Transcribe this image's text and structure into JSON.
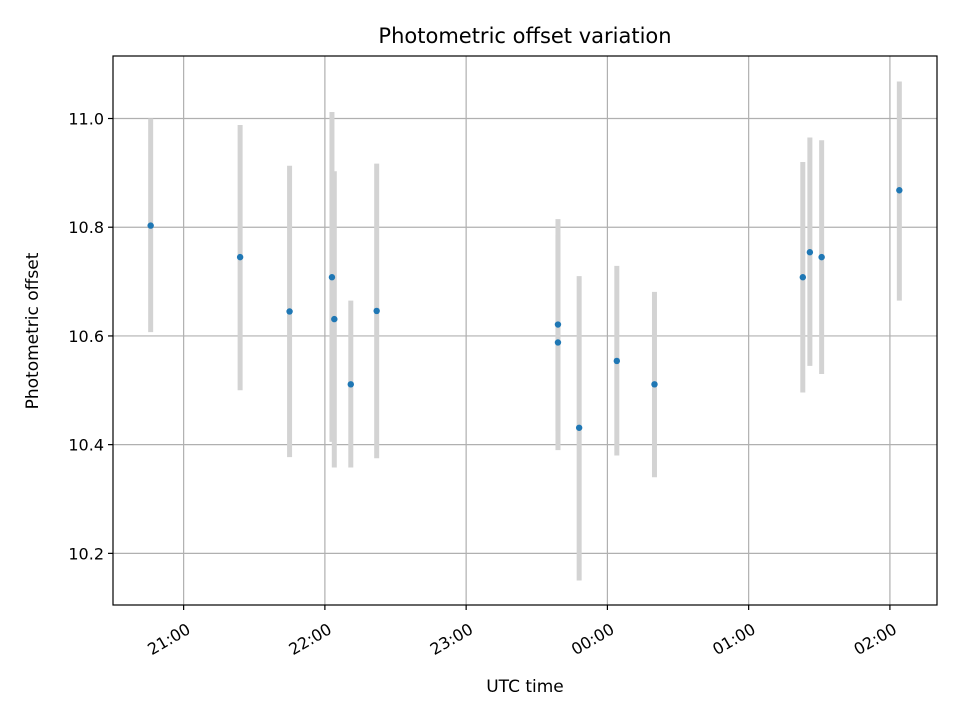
{
  "chart_data": {
    "type": "scatter",
    "title": "Photometric offset variation",
    "xlabel": "UTC time",
    "ylabel": "Photometric offset",
    "x_tick_labels": [
      "21:00",
      "22:00",
      "23:00",
      "00:00",
      "01:00",
      "02:00"
    ],
    "y_tick_labels": [
      "10.2",
      "10.4",
      "10.6",
      "10.8",
      "11.0"
    ],
    "xlim": [
      "20:30",
      "02:20"
    ],
    "ylim": [
      10.105,
      11.115
    ],
    "grid": true,
    "legend": "none",
    "colors": {
      "marker": "#1f77b4",
      "errorbar": "#d3d3d3",
      "grid": "#b0b0b0"
    },
    "points": [
      {
        "time": "20:46",
        "y": 10.803,
        "y_low": 10.607,
        "y_high": 11.0
      },
      {
        "time": "21:24",
        "y": 10.745,
        "y_low": 10.5,
        "y_high": 10.988
      },
      {
        "time": "21:45",
        "y": 10.645,
        "y_low": 10.377,
        "y_high": 10.913
      },
      {
        "time": "22:03",
        "y": 10.708,
        "y_low": 10.405,
        "y_high": 11.012
      },
      {
        "time": "22:04",
        "y": 10.631,
        "y_low": 10.358,
        "y_high": 10.903
      },
      {
        "time": "22:11",
        "y": 10.511,
        "y_low": 10.358,
        "y_high": 10.665
      },
      {
        "time": "22:22",
        "y": 10.646,
        "y_low": 10.375,
        "y_high": 10.917
      },
      {
        "time": "23:39",
        "y": 10.621,
        "y_low": 10.425,
        "y_high": 10.815
      },
      {
        "time": "23:39",
        "y": 10.588,
        "y_low": 10.39,
        "y_high": 10.786
      },
      {
        "time": "23:48",
        "y": 10.431,
        "y_low": 10.15,
        "y_high": 10.71
      },
      {
        "time": "00:04",
        "y": 10.554,
        "y_low": 10.38,
        "y_high": 10.729
      },
      {
        "time": "00:20",
        "y": 10.511,
        "y_low": 10.34,
        "y_high": 10.681
      },
      {
        "time": "01:23",
        "y": 10.708,
        "y_low": 10.496,
        "y_high": 10.92
      },
      {
        "time": "01:26",
        "y": 10.754,
        "y_low": 10.545,
        "y_high": 10.965
      },
      {
        "time": "01:31",
        "y": 10.745,
        "y_low": 10.53,
        "y_high": 10.96
      },
      {
        "time": "02:04",
        "y": 10.868,
        "y_low": 10.665,
        "y_high": 11.068
      }
    ]
  }
}
